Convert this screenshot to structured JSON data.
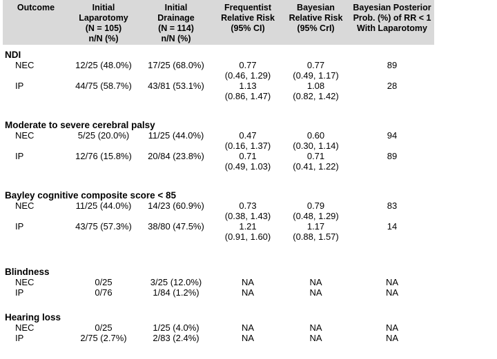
{
  "colors": {
    "header_bg": "#d9d9d9",
    "text": "#000000"
  },
  "table": {
    "header": {
      "columns": [
        {
          "lines": [
            "Outcome"
          ]
        },
        {
          "lines": [
            "Initial",
            "Laparotomy",
            "(N = 105)",
            "n/N (%)"
          ]
        },
        {
          "lines": [
            "Initial",
            "Drainage",
            "(N = 114)",
            "n/N (%)"
          ]
        },
        {
          "lines": [
            "Frequentist",
            "Relative Risk",
            "(95% CI)"
          ]
        },
        {
          "lines": [
            "Bayesian",
            "Relative Risk",
            "(95% CrI)"
          ]
        },
        {
          "lines": [
            "Bayesian Posterior",
            "Prob. (%) of RR < 1",
            "With Laparotomy"
          ]
        }
      ]
    },
    "sections": [
      {
        "title": "NDI",
        "rows": [
          {
            "label": "NEC",
            "laparotomy": "12/25 (48.0%)",
            "drainage": "17/25 (68.0%)",
            "freq_rr": "0.77",
            "freq_ci": "(0.46, 1.29)",
            "bayes_rr": "0.77",
            "bayes_ci": "(0.49, 1.17)",
            "posterior": "89"
          },
          {
            "label": "IP",
            "laparotomy": "44/75 (58.7%)",
            "drainage": "43/81 (53.1%)",
            "freq_rr": "1.13",
            "freq_ci": "(0.86, 1.47)",
            "bayes_rr": "1.08",
            "bayes_ci": "(0.82, 1.42)",
            "posterior": "28"
          }
        ]
      },
      {
        "title": "Moderate to severe cerebral palsy",
        "rows": [
          {
            "label": "NEC",
            "laparotomy": "5/25 (20.0%)",
            "drainage": "11/25 (44.0%)",
            "freq_rr": "0.47",
            "freq_ci": "(0.16, 1.37)",
            "bayes_rr": "0.60",
            "bayes_ci": "(0.30, 1.14)",
            "posterior": "94"
          },
          {
            "label": "IP",
            "laparotomy": "12/76 (15.8%)",
            "drainage": "20/84 (23.8%)",
            "freq_rr": "0.71",
            "freq_ci": "(0.49, 1.03)",
            "bayes_rr": "0.71",
            "bayes_ci": "(0.41, 1.22)",
            "posterior": "89"
          }
        ]
      },
      {
        "title": "Bayley cognitive composite score < 85",
        "rows": [
          {
            "label": "NEC",
            "laparotomy": "11/25 (44.0%)",
            "drainage": "14/23 (60.9%)",
            "freq_rr": "0.73",
            "freq_ci": "(0.38, 1.43)",
            "bayes_rr": "0.79",
            "bayes_ci": "(0.48, 1.29)",
            "posterior": "83"
          },
          {
            "label": "IP",
            "laparotomy": "43/75 (57.3%)",
            "drainage": "38/80 (47.5%)",
            "freq_rr": "1.21",
            "freq_ci": "(0.91, 1.60)",
            "bayes_rr": "1.17",
            "bayes_ci": "(0.88, 1.57)",
            "posterior": "14"
          }
        ]
      },
      {
        "title": "Blindness",
        "rows": [
          {
            "label": "NEC",
            "laparotomy": "0/25",
            "drainage": "3/25 (12.0%)",
            "freq_rr": "NA",
            "freq_ci": "",
            "bayes_rr": "NA",
            "bayes_ci": "",
            "posterior": "NA"
          },
          {
            "label": "IP",
            "laparotomy": "0/76",
            "drainage": "1/84 (1.2%)",
            "freq_rr": "NA",
            "freq_ci": "",
            "bayes_rr": "NA",
            "bayes_ci": "",
            "posterior": "NA"
          }
        ]
      },
      {
        "title": "Hearing loss",
        "rows": [
          {
            "label": "NEC",
            "laparotomy": "0/25",
            "drainage": "1/25 (4.0%)",
            "freq_rr": "NA",
            "freq_ci": "",
            "bayes_rr": "NA",
            "bayes_ci": "",
            "posterior": "NA"
          },
          {
            "label": "IP",
            "laparotomy": "2/75 (2.7%)",
            "drainage": "2/83 (2.4%)",
            "freq_rr": "NA",
            "freq_ci": "",
            "bayes_rr": "NA",
            "bayes_ci": "",
            "posterior": "NA"
          }
        ]
      }
    ]
  }
}
